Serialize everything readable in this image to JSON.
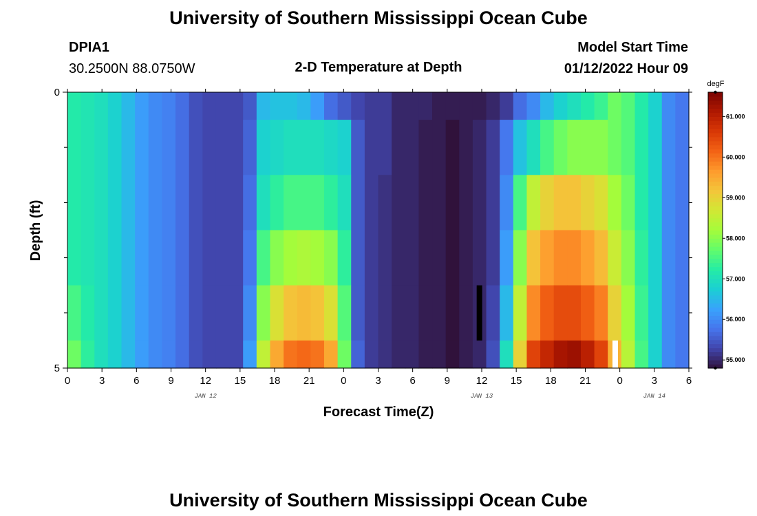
{
  "header": {
    "title": "University of Southern Mississippi Ocean Cube",
    "station_id": "DPIA1",
    "station_coords": "30.2500N  88.0750W",
    "plot_title": "2-D Temperature at Depth",
    "start_label": "Model Start Time",
    "start_value": "01/12/2022 Hour 09"
  },
  "footer": {
    "title": "University of Southern Mississippi Ocean Cube"
  },
  "chart_data": {
    "type": "heatmap",
    "title": "2-D Temperature at Depth",
    "xlabel": "Forecast Time(Z)",
    "ylabel": "Depth (ft)",
    "x_range_hours": [
      0,
      54
    ],
    "y_range_ft": [
      0,
      5
    ],
    "x_tick_labels": [
      "0",
      "3",
      "6",
      "9",
      "12",
      "15",
      "18",
      "21",
      "0",
      "3",
      "6",
      "9",
      "12",
      "15",
      "18",
      "21",
      "0",
      "3",
      "6"
    ],
    "y_tick_labels": [
      "0",
      "5"
    ],
    "date_labels": [
      {
        "label": "JAN 12",
        "hour": 12
      },
      {
        "label": "JAN 13",
        "hour": 36
      },
      {
        "label": "JAN 14",
        "hour": 51
      }
    ],
    "colorbar": {
      "unit": "degF",
      "min": 54.8,
      "max": 61.6,
      "tick_labels": [
        "55.000",
        "56.000",
        "57.000",
        "58.000",
        "59.000",
        "60.000",
        "61.000"
      ],
      "tick_values": [
        55,
        56,
        57,
        58,
        59,
        60,
        61
      ],
      "colors": [
        "#30123b",
        "#4145ab",
        "#4675ed",
        "#39a2fc",
        "#1bcfd4",
        "#24eca6",
        "#61fc6c",
        "#a4fc3b",
        "#d1e834",
        "#f3c63a",
        "#fe9b2d",
        "#f36315",
        "#d93806",
        "#b11901",
        "#7a0402"
      ]
    },
    "depth_levels_ft": [
      0,
      0.5,
      1.5,
      2.5,
      3.5,
      4.5
    ],
    "series": [
      {
        "name": "0 ft",
        "values": [
          57.2,
          57.1,
          57.0,
          56.8,
          56.5,
          56.2,
          56.0,
          55.9,
          55.7,
          55.4,
          55.3,
          55.3,
          55.3,
          55.5,
          56.5,
          56.6,
          56.6,
          56.5,
          56.2,
          55.7,
          55.5,
          55.3,
          55.2,
          55.2,
          55.0,
          55.0,
          55.0,
          54.9,
          54.9,
          54.9,
          54.9,
          55.0,
          55.2,
          55.7,
          56.0,
          56.5,
          56.8,
          57.0,
          57.2,
          57.4,
          57.8,
          57.6,
          57.2,
          56.8,
          56.0,
          55.8
        ]
      },
      {
        "name": "0.5 ft",
        "values": [
          57.2,
          57.1,
          57.0,
          56.8,
          56.5,
          56.2,
          56.0,
          55.9,
          55.7,
          55.4,
          55.3,
          55.3,
          55.3,
          55.6,
          56.8,
          56.9,
          57.0,
          57.0,
          57.0,
          56.9,
          56.8,
          55.5,
          55.2,
          55.2,
          55.0,
          55.0,
          54.9,
          54.9,
          54.8,
          54.9,
          55.0,
          55.2,
          55.8,
          56.6,
          57.0,
          57.5,
          57.8,
          58.0,
          58.0,
          58.0,
          57.8,
          57.6,
          57.2,
          56.8,
          56.0,
          55.8
        ]
      },
      {
        "name": "1.5 ft",
        "values": [
          57.2,
          57.1,
          57.0,
          56.8,
          56.5,
          56.2,
          56.0,
          55.9,
          55.7,
          55.4,
          55.3,
          55.3,
          55.3,
          55.7,
          57.0,
          57.3,
          57.5,
          57.5,
          57.5,
          57.3,
          57.0,
          55.5,
          55.2,
          55.1,
          55.0,
          55.0,
          54.9,
          54.9,
          54.8,
          54.9,
          55.0,
          55.2,
          56.0,
          57.5,
          58.5,
          59.0,
          59.2,
          59.2,
          59.0,
          58.8,
          58.2,
          57.8,
          57.2,
          56.8,
          56.0,
          55.8
        ]
      },
      {
        "name": "2.5 ft",
        "values": [
          57.2,
          57.1,
          57.0,
          56.8,
          56.5,
          56.2,
          56.0,
          55.9,
          55.7,
          55.4,
          55.3,
          55.3,
          55.3,
          55.8,
          57.5,
          58.0,
          58.2,
          58.3,
          58.2,
          58.0,
          57.3,
          55.5,
          55.2,
          55.1,
          55.0,
          55.0,
          54.9,
          54.9,
          54.8,
          54.9,
          55.0,
          55.2,
          56.2,
          58.0,
          59.2,
          59.6,
          59.8,
          59.8,
          59.6,
          59.3,
          58.6,
          58.0,
          57.3,
          56.8,
          56.0,
          55.8
        ]
      },
      {
        "name": "3.5 ft",
        "values": [
          57.5,
          57.2,
          57.0,
          56.8,
          56.5,
          56.2,
          56.0,
          55.9,
          55.7,
          55.4,
          55.3,
          55.3,
          55.3,
          56.0,
          58.0,
          58.8,
          59.2,
          59.3,
          59.2,
          58.8,
          57.6,
          55.5,
          55.2,
          55.1,
          55.0,
          55.0,
          54.9,
          54.9,
          54.8,
          54.9,
          55.0,
          55.3,
          56.5,
          58.5,
          59.8,
          60.2,
          60.4,
          60.4,
          60.2,
          59.9,
          59.0,
          58.2,
          57.4,
          56.8,
          56.0,
          55.8
        ]
      },
      {
        "name": "4.5 ft",
        "values": [
          57.8,
          57.3,
          57.0,
          56.8,
          56.5,
          56.2,
          56.0,
          55.9,
          55.7,
          55.4,
          55.3,
          55.3,
          55.3,
          56.2,
          58.5,
          59.5,
          60.0,
          60.1,
          60.0,
          59.5,
          57.8,
          55.6,
          55.2,
          55.1,
          55.0,
          55.0,
          54.9,
          54.9,
          54.8,
          54.9,
          55.0,
          55.4,
          57.0,
          59.0,
          60.5,
          60.9,
          61.2,
          61.3,
          61.0,
          60.5,
          59.4,
          58.4,
          57.5,
          56.8,
          56.0,
          55.8
        ]
      }
    ],
    "missing_cells": [
      {
        "depth_from_ft": 3.5,
        "depth_to_ft": 4.5,
        "hour": 35.8,
        "color": "#000000"
      },
      {
        "depth_from_ft": 4.5,
        "depth_to_ft": 5.0,
        "hour": 47.6,
        "color": "#ffffff"
      }
    ]
  }
}
